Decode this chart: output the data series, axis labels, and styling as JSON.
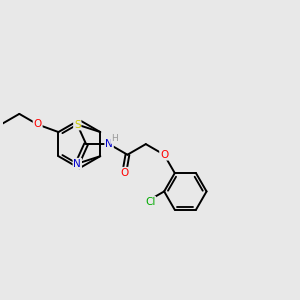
{
  "bg_color": "#e8e8e8",
  "bond_color": "#000000",
  "atom_colors": {
    "S": "#cccc00",
    "N": "#0000cc",
    "O": "#ff0000",
    "Cl": "#00aa00",
    "H": "#999999",
    "C": "#000000"
  },
  "font_size": 7.5,
  "bond_width": 1.4
}
